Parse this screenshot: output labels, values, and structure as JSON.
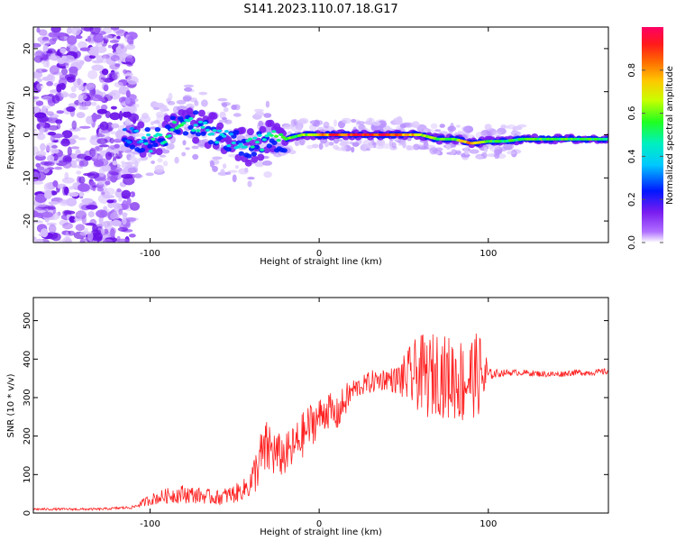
{
  "figure": {
    "title": "S141.2023.110.07.18.G17"
  },
  "chart_data": [
    {
      "type": "heatmap",
      "title": "S141.2023.110.07.18.G17",
      "xlabel": "Height of straight line (km)",
      "ylabel": "Frequency (Hz)",
      "xlim": [
        -169,
        171
      ],
      "ylim": [
        -25,
        25
      ],
      "x_ticks": [
        -100,
        0,
        100
      ],
      "x_tick_labels": [
        "-100",
        "0",
        "100"
      ],
      "y_ticks": [
        -20,
        -10,
        0,
        10,
        20
      ],
      "y_tick_labels": [
        "-20",
        "-10",
        "0",
        "10",
        "20"
      ],
      "colorbar": {
        "label": "Normalized spectral amplitude",
        "range": [
          0,
          1
        ],
        "ticks": [
          0.0,
          0.2,
          0.4,
          0.6,
          0.8
        ],
        "tick_labels": [
          "0.0",
          "0.2",
          "0.4",
          "0.6",
          "0.8"
        ],
        "colors": [
          "#ffffff",
          "#b070ff",
          "#7a1cf0",
          "#0018ff",
          "#00c8ff",
          "#00f0c0",
          "#20ff20",
          "#c8ff00",
          "#ffc800",
          "#ff6a00",
          "#ff1a1a",
          "#ff0066"
        ]
      },
      "ridge": {
        "x": [
          -110,
          -100,
          -90,
          -80,
          -70,
          -60,
          -50,
          -40,
          -30,
          -20,
          -10,
          0,
          10,
          20,
          30,
          40,
          50,
          60,
          70,
          80,
          90,
          100,
          110,
          120,
          130,
          140,
          150,
          160,
          171
        ],
        "frequency_hz": [
          0,
          -2,
          0,
          3,
          2,
          0,
          -2,
          -3,
          -1,
          -1,
          0,
          0,
          0,
          0,
          0,
          0,
          0,
          0,
          -1,
          -1,
          -2,
          -1.5,
          -1.5,
          -1,
          -1,
          -1,
          -1,
          -1,
          -1
        ],
        "amplitude": [
          0.3,
          0.45,
          0.5,
          0.5,
          0.45,
          0.4,
          0.4,
          0.45,
          0.5,
          0.55,
          0.6,
          0.75,
          0.9,
          0.95,
          0.95,
          0.9,
          0.85,
          0.7,
          0.6,
          0.6,
          0.85,
          0.55,
          0.55,
          0.55,
          0.6,
          0.55,
          0.55,
          0.55,
          0.5
        ]
      },
      "grid": false
    },
    {
      "type": "line",
      "xlabel": "Height of straight line (km)",
      "ylabel": "SNR (10 * v/v)",
      "xlim": [
        -169,
        171
      ],
      "ylim": [
        0,
        560
      ],
      "x_ticks": [
        -100,
        0,
        100
      ],
      "x_tick_labels": [
        "-100",
        "0",
        "100"
      ],
      "y_ticks": [
        0,
        100,
        200,
        300,
        400,
        500
      ],
      "y_tick_labels": [
        "0",
        "100",
        "200",
        "300",
        "400",
        "500"
      ],
      "grid": false,
      "series": [
        {
          "color": "#ff2020",
          "x": [
            -169,
            -150,
            -130,
            -110,
            -100,
            -90,
            -80,
            -70,
            -60,
            -50,
            -45,
            -40,
            -35,
            -30,
            -25,
            -20,
            -15,
            -10,
            -5,
            0,
            5,
            10,
            15,
            20,
            25,
            30,
            35,
            40,
            45,
            50,
            55,
            60,
            65,
            70,
            75,
            80,
            85,
            90,
            95,
            98,
            100,
            110,
            120,
            130,
            140,
            150,
            160,
            171
          ],
          "y": [
            10,
            10,
            10,
            15,
            35,
            45,
            50,
            45,
            40,
            50,
            60,
            80,
            140,
            170,
            150,
            150,
            170,
            200,
            230,
            250,
            270,
            250,
            290,
            320,
            330,
            340,
            345,
            350,
            345,
            350,
            355,
            365,
            350,
            370,
            350,
            355,
            340,
            355,
            360,
            350,
            360,
            365,
            365,
            362,
            360,
            365,
            365,
            368
          ],
          "noise": [
            3,
            3,
            3,
            4,
            15,
            20,
            25,
            20,
            20,
            25,
            25,
            45,
            70,
            80,
            60,
            55,
            60,
            60,
            60,
            50,
            50,
            45,
            45,
            30,
            25,
            30,
            30,
            30,
            35,
            60,
            90,
            100,
            110,
            110,
            110,
            115,
            115,
            110,
            110,
            100,
            15,
            8,
            8,
            8,
            8,
            8,
            8,
            8
          ]
        }
      ]
    }
  ]
}
